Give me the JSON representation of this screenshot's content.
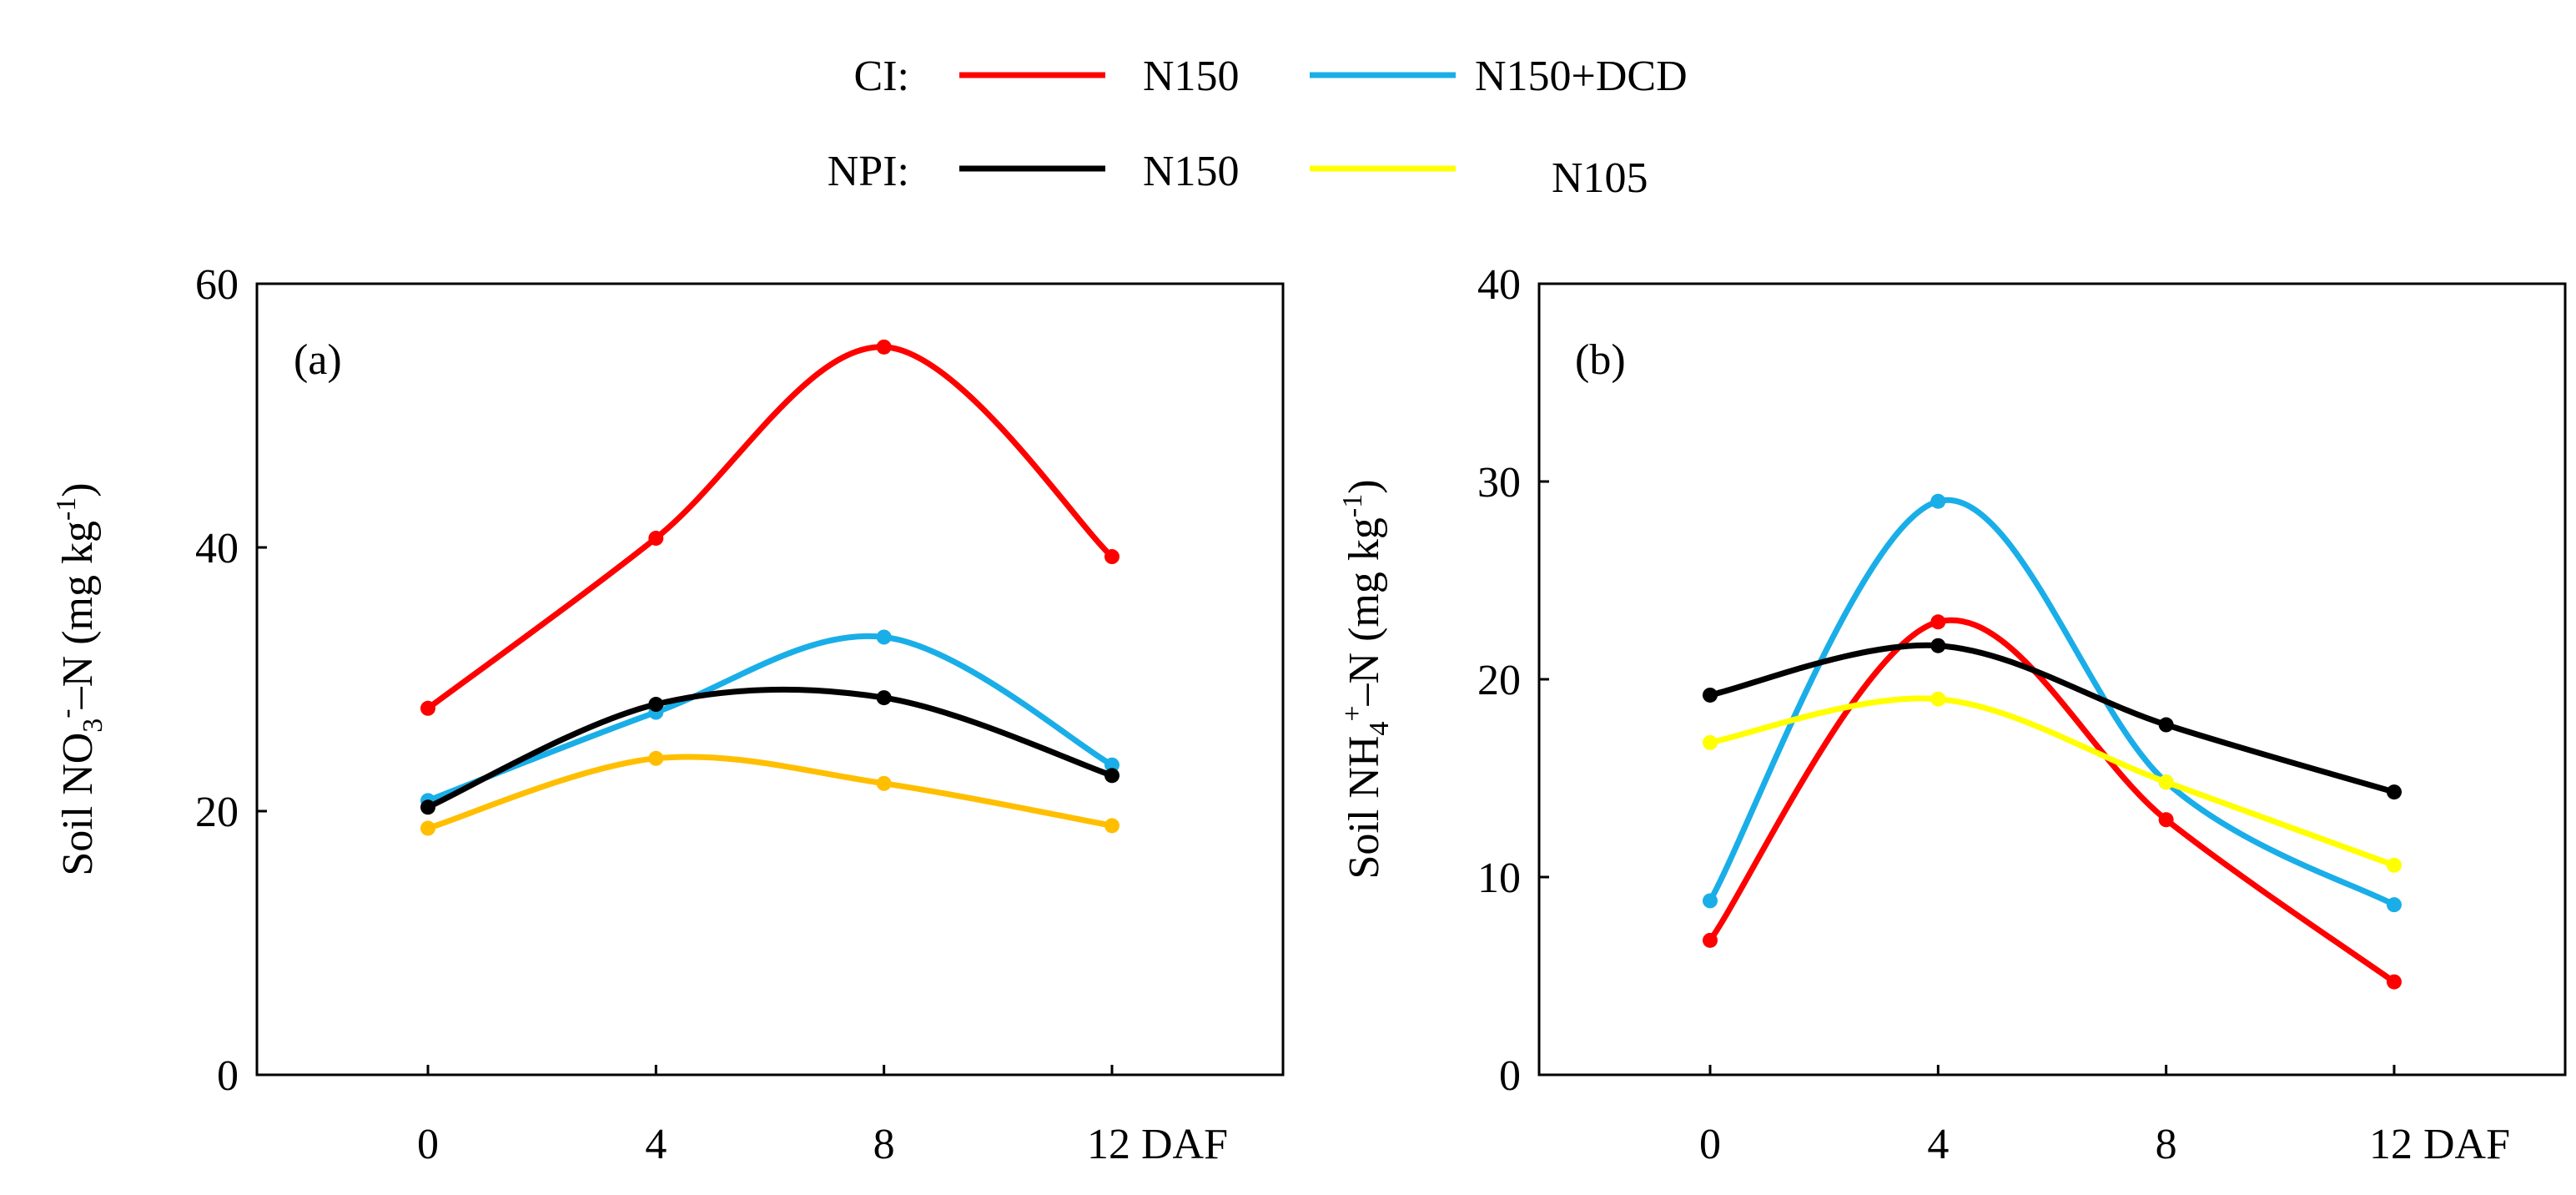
{
  "legend": {
    "rows": [
      {
        "label": "CI:",
        "entries": [
          {
            "series": "CI N150",
            "text": "N150",
            "color": "#ff0000"
          },
          {
            "series": "CI N150+DCD",
            "text": "N150+DCD",
            "color": "#1aaee8"
          }
        ]
      },
      {
        "label": "NPI:",
        "entries": [
          {
            "series": "NPI N150",
            "text": "N150",
            "color": "#000000"
          },
          {
            "series": "NPI N105",
            "text": "N105",
            "color": "#ffff00"
          }
        ]
      }
    ]
  },
  "chart_data": [
    {
      "type": "line",
      "panel_label": "(a)",
      "ylabel_parts": [
        "Soil NO",
        "3",
        "-",
        "–N (mg kg",
        "-1",
        ")"
      ],
      "ylim": [
        0,
        60
      ],
      "yticks": [
        0,
        20,
        40,
        60
      ],
      "xlim": [
        -3,
        15
      ],
      "x": [
        0,
        4,
        8,
        12
      ],
      "xtick_labels": [
        "0",
        "4",
        "8",
        "12 DAF"
      ],
      "series": [
        {
          "name": "CI N150",
          "color": "#ff0000",
          "values": [
            27.8,
            40.7,
            55.2,
            39.3
          ]
        },
        {
          "name": "CI N150+DCD",
          "color": "#1aaee8",
          "values": [
            20.8,
            27.5,
            33.2,
            23.5
          ]
        },
        {
          "name": "NPI N150",
          "color": "#000000",
          "values": [
            20.3,
            28.1,
            28.6,
            22.7
          ]
        },
        {
          "name": "NPI N105",
          "color": "#ffbf00",
          "values": [
            18.7,
            24.0,
            22.1,
            18.9
          ]
        }
      ]
    },
    {
      "type": "line",
      "panel_label": "(b)",
      "ylabel_parts": [
        "Soil NH",
        "4",
        "+",
        "–N (mg kg",
        "-1",
        ")"
      ],
      "ylim": [
        0,
        40
      ],
      "yticks": [
        0,
        10,
        20,
        30,
        40
      ],
      "xlim": [
        -3,
        15
      ],
      "x": [
        0,
        4,
        8,
        12
      ],
      "xtick_labels": [
        "0",
        "4",
        "8",
        "12 DAF"
      ],
      "series": [
        {
          "name": "CI N150",
          "color": "#ff0000",
          "values": [
            6.8,
            22.9,
            12.9,
            4.7
          ]
        },
        {
          "name": "CI N150+DCD",
          "color": "#1aaee8",
          "values": [
            8.8,
            29.0,
            14.8,
            8.6
          ]
        },
        {
          "name": "NPI N150",
          "color": "#000000",
          "values": [
            19.2,
            21.7,
            17.7,
            14.3
          ]
        },
        {
          "name": "NPI N105",
          "color": "#ffff00",
          "values": [
            16.8,
            19.0,
            14.8,
            10.6
          ]
        }
      ]
    }
  ]
}
